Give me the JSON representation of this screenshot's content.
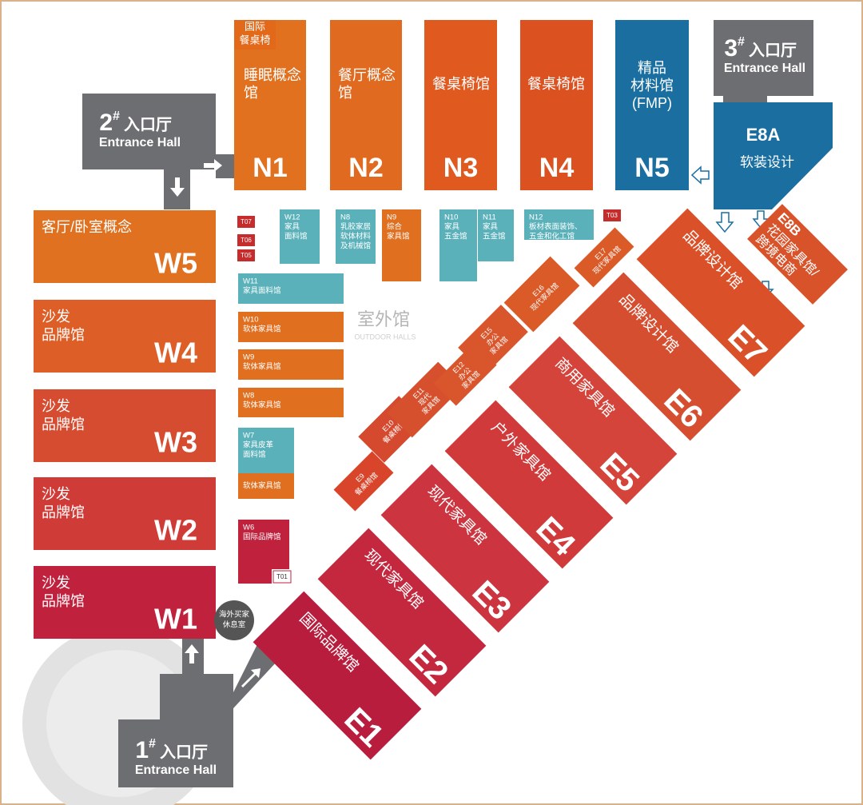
{
  "entrances": [
    {
      "num": "1",
      "mark": "#",
      "name": "入口厅",
      "en": "Entrance Hall"
    },
    {
      "num": "2",
      "mark": "#",
      "name": "入口厅",
      "en": "Entrance Hall"
    },
    {
      "num": "3",
      "mark": "#",
      "name": "入口厅",
      "en": "Entrance Hall"
    }
  ],
  "north": [
    {
      "code": "N1",
      "name": [
        "睡眠概念",
        "馆"
      ],
      "tag": [
        "国际",
        "餐桌椅"
      ]
    },
    {
      "code": "N2",
      "name": [
        "餐厅概念",
        "馆"
      ]
    },
    {
      "code": "N3",
      "name": [
        "餐桌椅馆"
      ]
    },
    {
      "code": "N4",
      "name": [
        "餐桌椅馆"
      ]
    },
    {
      "code": "N5",
      "name": [
        "精品",
        "材料馆",
        "(FMP)"
      ]
    }
  ],
  "e8a": {
    "code": "E8A",
    "name": "软装设计"
  },
  "e8b": {
    "code": "E8B",
    "name": [
      "花园家具馆/",
      "跨境电商"
    ]
  },
  "west": [
    {
      "code": "W5",
      "name": [
        "客厅/卧室概念"
      ]
    },
    {
      "code": "W4",
      "name": [
        "沙发",
        "品牌馆"
      ]
    },
    {
      "code": "W3",
      "name": [
        "沙发",
        "品牌馆"
      ]
    },
    {
      "code": "W2",
      "name": [
        "沙发",
        "品牌馆"
      ]
    },
    {
      "code": "W1",
      "name": [
        "沙发",
        "品牌馆"
      ]
    }
  ],
  "east": [
    {
      "code": "E1",
      "name": "国际品牌馆"
    },
    {
      "code": "E2",
      "name": "现代家具馆"
    },
    {
      "code": "E3",
      "name": "现代家具馆"
    },
    {
      "code": "E4",
      "name": "户外家具馆"
    },
    {
      "code": "E5",
      "name": "商用家具馆"
    },
    {
      "code": "E6",
      "name": "品牌设计馆"
    },
    {
      "code": "E7",
      "name": "品牌设计馆"
    }
  ],
  "east_small": [
    {
      "code": "E9",
      "name": [
        "餐桌椅馆"
      ]
    },
    {
      "code": "E10",
      "name": [
        "餐桌椅馆"
      ]
    },
    {
      "code": "E11",
      "name": [
        "现代",
        "家具馆"
      ]
    },
    {
      "code": "E12",
      "name": [
        "办公",
        "家具馆"
      ]
    },
    {
      "code": "E15",
      "name": [
        "办公",
        "家具馆"
      ]
    },
    {
      "code": "E16",
      "name": [
        "现代家具馆"
      ]
    },
    {
      "code": "E17",
      "name": [
        "现代家具馆"
      ]
    }
  ],
  "outdoor": {
    "title": "室外馆",
    "subtitle": "OUTDOOR HALLS"
  },
  "outdoor_halls": [
    {
      "code": "W12",
      "name": [
        "家具",
        "面料馆"
      ]
    },
    {
      "code": "N8",
      "name": [
        "乳胶家居",
        "软体材料",
        "及机械馆"
      ]
    },
    {
      "code": "N9",
      "name": [
        "综合",
        "家具馆"
      ]
    },
    {
      "code": "N10",
      "name": [
        "家具",
        "五金馆"
      ]
    },
    {
      "code": "N11",
      "name": [
        "家具",
        "五金馆"
      ]
    },
    {
      "code": "N12",
      "name": [
        "板材表面装饰、",
        "五金和化工馆"
      ]
    },
    {
      "code": "W11",
      "name": [
        "家具面料馆"
      ]
    },
    {
      "code": "W10",
      "name": [
        "软体家具馆"
      ]
    },
    {
      "code": "W9",
      "name": [
        "软体家具馆"
      ]
    },
    {
      "code": "W8",
      "name": [
        "软体家具馆"
      ]
    },
    {
      "code": "W7",
      "name": [
        "家具皮革",
        "面料馆"
      ],
      "extra": "软体家具馆"
    },
    {
      "code": "W6",
      "name": [
        "国际品牌馆"
      ]
    }
  ],
  "small_codes": [
    "T07",
    "T06",
    "T05",
    "T03",
    "T01"
  ],
  "lounge": [
    "海外买家",
    "休息室"
  ]
}
